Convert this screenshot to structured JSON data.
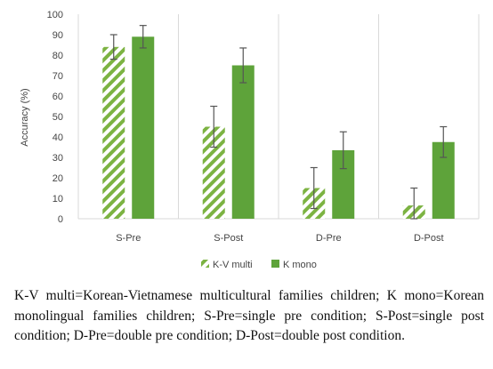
{
  "chart_data": {
    "type": "bar",
    "title": "",
    "xlabel": "",
    "ylabel": "Accuracy (%)",
    "ylim": [
      0,
      100
    ],
    "yticks": [
      0,
      10,
      20,
      30,
      40,
      50,
      60,
      70,
      80,
      90,
      100
    ],
    "categories": [
      "S-Pre",
      "S-Post",
      "D-Pre",
      "D-Post"
    ],
    "series": [
      {
        "name": "K-V multi",
        "pattern": "hatched",
        "color": "#7cb342",
        "values": [
          84,
          45,
          15,
          6.5
        ],
        "error": [
          6,
          10,
          10,
          8.5
        ]
      },
      {
        "name": "K mono",
        "pattern": "solid",
        "color": "#5ea33a",
        "values": [
          89,
          75,
          33.5,
          37.5
        ],
        "error": [
          5.5,
          8.5,
          9,
          7.5
        ]
      }
    ],
    "grid": false,
    "legend_position": "bottom"
  },
  "caption": "K-V multi=Korean-Vietnamese multicultural families children; K mono=Korean monolingual families children; S-Pre=single pre condition; S-Post=single post condition; D-Pre=double pre condition; D-Post=double post condition."
}
